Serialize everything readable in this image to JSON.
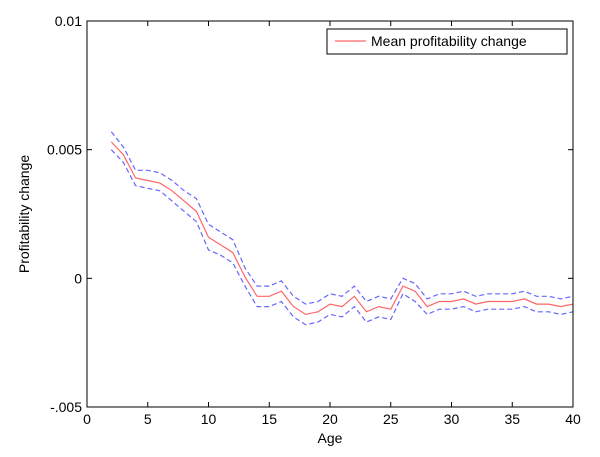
{
  "chart_data": {
    "type": "line",
    "xlabel": "Age",
    "ylabel": "Profitability change",
    "xlim": [
      0,
      40
    ],
    "ylim": [
      -0.005,
      0.01
    ],
    "x_ticks": [
      0,
      5,
      10,
      15,
      20,
      25,
      30,
      35,
      40
    ],
    "y_ticks": [
      -0.005,
      0,
      0.005,
      0.01
    ],
    "x_tick_labels": [
      "0",
      "5",
      "10",
      "15",
      "20",
      "25",
      "30",
      "35",
      "40"
    ],
    "y_tick_labels": [
      "-.005",
      "0",
      "0.005",
      "0.01"
    ],
    "grid": false,
    "legend_position": "top-right",
    "x": [
      2,
      3,
      4,
      5,
      6,
      7,
      8,
      9,
      10,
      11,
      12,
      13,
      14,
      15,
      16,
      17,
      18,
      19,
      20,
      21,
      22,
      23,
      24,
      25,
      26,
      27,
      28,
      29,
      30,
      31,
      32,
      33,
      34,
      35,
      36,
      37,
      38,
      39,
      40
    ],
    "series": [
      {
        "name": "Mean profitability change",
        "color": "#ff6666",
        "dash": "solid",
        "values": [
          0.0053,
          0.0048,
          0.0039,
          0.0038,
          0.0037,
          0.0034,
          0.003,
          0.0026,
          0.0016,
          0.0013,
          0.001,
          5e-05,
          -0.0007,
          -0.0007,
          -0.0005,
          -0.0011,
          -0.0014,
          -0.0013,
          -0.001,
          -0.0011,
          -0.0007,
          -0.0013,
          -0.0011,
          -0.0012,
          -0.0003,
          -0.0005,
          -0.0011,
          -0.0009,
          -0.0009,
          -0.0008,
          -0.001,
          -0.0009,
          -0.0009,
          -0.0009,
          -0.0008,
          -0.001,
          -0.001,
          -0.0011,
          -0.001
        ]
      },
      {
        "color": "#6666ff",
        "dash": "dashed",
        "values": [
          0.0057,
          0.0051,
          0.0042,
          0.0042,
          0.0041,
          0.0038,
          0.0034,
          0.0031,
          0.0021,
          0.0018,
          0.0015,
          0.0004,
          -0.0003,
          -0.0003,
          -0.0001,
          -0.0007,
          -0.001,
          -0.0009,
          -0.0006,
          -0.0007,
          -0.0003,
          -0.0009,
          -0.0007,
          -0.0008,
          0.0,
          -0.0002,
          -0.0008,
          -0.0006,
          -0.0006,
          -0.0005,
          -0.0007,
          -0.0006,
          -0.0006,
          -0.0006,
          -0.0005,
          -0.0007,
          -0.0007,
          -0.0008,
          -0.0007
        ]
      },
      {
        "color": "#6666ff",
        "dash": "dashed",
        "values": [
          0.005,
          0.0045,
          0.0036,
          0.0035,
          0.0034,
          0.003,
          0.0026,
          0.0022,
          0.0011,
          0.0009,
          0.0006,
          -0.0003,
          -0.0011,
          -0.0011,
          -0.0009,
          -0.0015,
          -0.0018,
          -0.0017,
          -0.0014,
          -0.0015,
          -0.0011,
          -0.0017,
          -0.0015,
          -0.0016,
          -0.0006,
          -0.0009,
          -0.0014,
          -0.0012,
          -0.0012,
          -0.0011,
          -0.0013,
          -0.0012,
          -0.0012,
          -0.0012,
          -0.0011,
          -0.0013,
          -0.0013,
          -0.0014,
          -0.0013
        ]
      }
    ]
  }
}
